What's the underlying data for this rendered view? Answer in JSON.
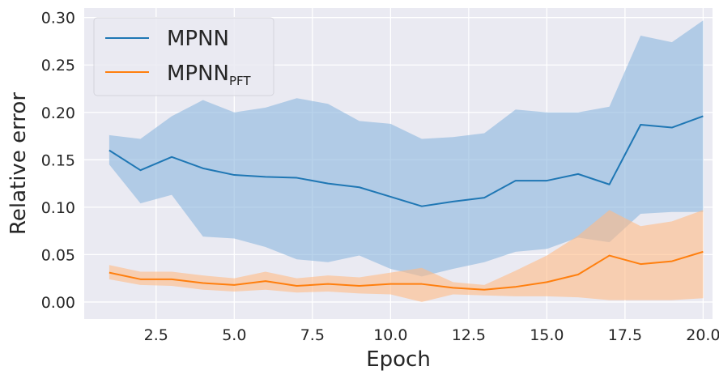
{
  "chart_data": {
    "type": "line",
    "xlabel": "Epoch",
    "ylabel": "Relative error",
    "xlim": [
      0.2,
      20.3
    ],
    "ylim": [
      -0.018,
      0.31
    ],
    "xticks": [
      2.5,
      5.0,
      7.5,
      10.0,
      12.5,
      15.0,
      17.5,
      20.0
    ],
    "xtick_labels": [
      "2.5",
      "5.0",
      "7.5",
      "10.0",
      "12.5",
      "15.0",
      "17.5",
      "20.0"
    ],
    "yticks": [
      0.0,
      0.05,
      0.1,
      0.15,
      0.2,
      0.25,
      0.3
    ],
    "ytick_labels": [
      "0.00",
      "0.05",
      "0.10",
      "0.15",
      "0.20",
      "0.25",
      "0.30"
    ],
    "grid": true,
    "legend_position": "top-left",
    "x": [
      1,
      2,
      3,
      4,
      5,
      6,
      7,
      8,
      9,
      10,
      11,
      12,
      13,
      14,
      15,
      16,
      17,
      18,
      19,
      20
    ],
    "series": [
      {
        "name": "MPNN",
        "name_main": "MPNN",
        "name_sub": "",
        "color": "#1f77b4",
        "band_color": "#8ab6dd",
        "values": [
          0.16,
          0.139,
          0.153,
          0.141,
          0.134,
          0.132,
          0.131,
          0.125,
          0.121,
          0.111,
          0.101,
          0.106,
          0.11,
          0.128,
          0.128,
          0.135,
          0.124,
          0.187,
          0.184,
          0.196
        ],
        "upper": [
          0.176,
          0.172,
          0.196,
          0.213,
          0.2,
          0.205,
          0.215,
          0.209,
          0.191,
          0.188,
          0.172,
          0.174,
          0.178,
          0.203,
          0.2,
          0.2,
          0.206,
          0.281,
          0.274,
          0.297
        ],
        "lower": [
          0.145,
          0.104,
          0.113,
          0.069,
          0.067,
          0.058,
          0.045,
          0.042,
          0.049,
          0.035,
          0.027,
          0.035,
          0.042,
          0.053,
          0.056,
          0.068,
          0.063,
          0.093,
          0.095,
          0.095
        ]
      },
      {
        "name": "MPNNPFT",
        "name_main": "MPNN",
        "name_sub": "PFT",
        "color": "#ff7f0e",
        "band_color": "#ffbb85",
        "values": [
          0.031,
          0.024,
          0.024,
          0.02,
          0.018,
          0.022,
          0.017,
          0.019,
          0.017,
          0.019,
          0.019,
          0.015,
          0.013,
          0.016,
          0.021,
          0.029,
          0.049,
          0.04,
          0.043,
          0.053
        ],
        "upper": [
          0.039,
          0.032,
          0.032,
          0.028,
          0.025,
          0.032,
          0.025,
          0.028,
          0.026,
          0.031,
          0.036,
          0.021,
          0.018,
          0.033,
          0.049,
          0.07,
          0.097,
          0.08,
          0.085,
          0.097
        ],
        "lower": [
          0.024,
          0.018,
          0.017,
          0.013,
          0.011,
          0.013,
          0.01,
          0.011,
          0.009,
          0.008,
          0.0,
          0.008,
          0.007,
          0.006,
          0.006,
          0.005,
          0.002,
          0.002,
          0.002,
          0.004
        ]
      }
    ]
  }
}
